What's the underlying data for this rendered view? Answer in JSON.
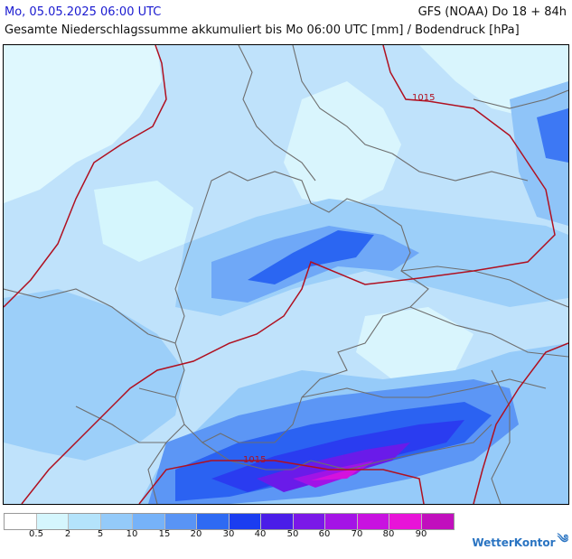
{
  "header": {
    "date": "Mo, 05.05.2025 06:00 UTC",
    "model": "GFS (NOAA) Do 18 + 84h",
    "description": "Gesamte Niederschlagssumme akkumuliert bis Mo 06:00 UTC [mm] / Bodendruck [hPa]"
  },
  "isobar_labels": [
    "1015",
    "1015"
  ],
  "legend": {
    "ticks": [
      "0.5",
      "2",
      "5",
      "10",
      "15",
      "20",
      "30",
      "40",
      "50",
      "60",
      "70",
      "80",
      "90"
    ],
    "colors": [
      "#ffffff",
      "#d5f6fd",
      "#b4e3fb",
      "#94caf9",
      "#76b2f8",
      "#5994f5",
      "#2e6af3",
      "#1b3df0",
      "#4a1de8",
      "#7a18e8",
      "#a414e6",
      "#c812e0",
      "#e814d8",
      "#c10fbd"
    ]
  },
  "brand": {
    "name": "WetterKontor",
    "icon": "wind-icon"
  },
  "colors": {
    "isobar": "#b01020",
    "border": "#6e6e6e",
    "title_blue": "#1a1ad0"
  }
}
